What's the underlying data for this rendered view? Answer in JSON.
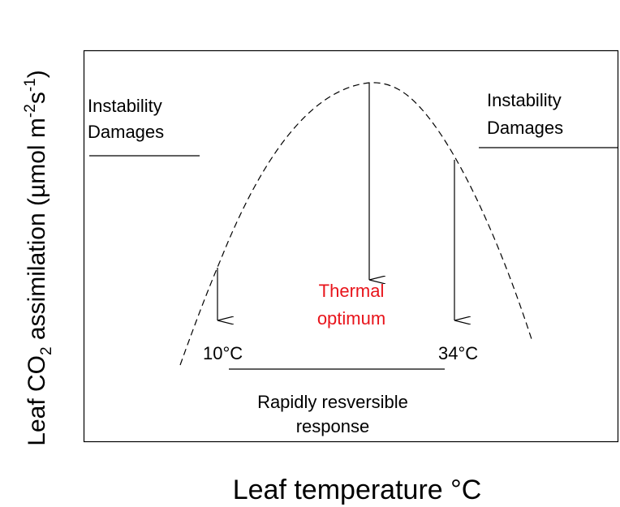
{
  "y_axis_label": {
    "parts": [
      "Leaf CO",
      "2",
      " assimilation (µmol m",
      "-2",
      "s",
      "-1",
      ")"
    ]
  },
  "x_axis_label": "Leaf temperature °C",
  "left_zone": {
    "lines": [
      "Instability",
      "Damages"
    ]
  },
  "right_zone": {
    "lines": [
      "Instability",
      "Damages"
    ]
  },
  "low_mark": "10°C",
  "high_mark": "34°C",
  "optimum": {
    "lines": [
      "Thermal",
      "optimum"
    ]
  },
  "reversible": {
    "lines": [
      "Rapidly resversible",
      "response"
    ]
  }
}
